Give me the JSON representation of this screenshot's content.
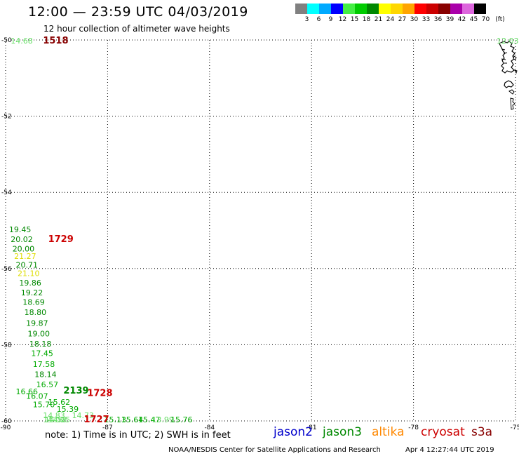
{
  "title": "12:00 — 23:59 UTC 04/03/2019",
  "subtitle": "12 hour collection of altimeter wave heights",
  "legend": {
    "unit": "(ft)",
    "bins": [
      {
        "label": "3",
        "color": "#808080"
      },
      {
        "label": "6",
        "color": "#00ffff"
      },
      {
        "label": "9",
        "color": "#00aaff"
      },
      {
        "label": "12",
        "color": "#0000ff"
      },
      {
        "label": "15",
        "color": "#44ee44"
      },
      {
        "label": "18",
        "color": "#00cc00"
      },
      {
        "label": "21",
        "color": "#008800"
      },
      {
        "label": "24",
        "color": "#ffff00"
      },
      {
        "label": "27",
        "color": "#ffd700"
      },
      {
        "label": "30",
        "color": "#ffa500"
      },
      {
        "label": "33",
        "color": "#ff0000"
      },
      {
        "label": "36",
        "color": "#cc0000"
      },
      {
        "label": "39",
        "color": "#880000"
      },
      {
        "label": "42",
        "color": "#aa00aa"
      },
      {
        "label": "45",
        "color": "#dd66dd"
      },
      {
        "label": "70",
        "color": "#000000"
      }
    ]
  },
  "map": {
    "lon_range": [
      -90,
      -75
    ],
    "lat_range": [
      -60,
      -50
    ],
    "lon_ticks": [
      "-90",
      "-87",
      "-84",
      "-81",
      "-78",
      "-75"
    ],
    "lat_ticks": [
      "-50",
      "-52",
      "-54",
      "-56",
      "-58",
      "-60"
    ],
    "observations": [
      {
        "text": "14.68",
        "lon": -89.85,
        "lat": -50.0,
        "color": "#66dd66"
      },
      {
        "text": "1518",
        "lon": -88.9,
        "lat": -50.0,
        "color": "#880000",
        "bold": true
      },
      {
        "text": "12.03",
        "lon": -75.05,
        "lat": -50.0,
        "color": "#66dd66"
      },
      {
        "text": "19.45",
        "lon": -89.9,
        "lat": -55.05,
        "color": "#008800"
      },
      {
        "text": "20.02",
        "lon": -89.85,
        "lat": -55.3,
        "color": "#008800"
      },
      {
        "text": "1729",
        "lon": -88.75,
        "lat": -55.3,
        "color": "#cc0000",
        "bold": true
      },
      {
        "text": "20.00",
        "lon": -89.8,
        "lat": -55.55,
        "color": "#008800"
      },
      {
        "text": "21.27",
        "lon": -89.75,
        "lat": -55.75,
        "color": "#dddd00"
      },
      {
        "text": "20.71",
        "lon": -89.7,
        "lat": -55.98,
        "color": "#008800"
      },
      {
        "text": "21.10",
        "lon": -89.65,
        "lat": -56.2,
        "color": "#dddd00"
      },
      {
        "text": "19.86",
        "lon": -89.6,
        "lat": -56.45,
        "color": "#008800"
      },
      {
        "text": "19.22",
        "lon": -89.55,
        "lat": -56.7,
        "color": "#008800"
      },
      {
        "text": "18.69",
        "lon": -89.5,
        "lat": -56.95,
        "color": "#008800"
      },
      {
        "text": "18.80",
        "lon": -89.45,
        "lat": -57.22,
        "color": "#008800"
      },
      {
        "text": "19.87",
        "lon": -89.4,
        "lat": -57.5,
        "color": "#008800"
      },
      {
        "text": "19.00",
        "lon": -89.35,
        "lat": -57.78,
        "color": "#008800"
      },
      {
        "text": "18.18",
        "lon": -89.3,
        "lat": -58.05,
        "color": "#008800"
      },
      {
        "text": "17.45",
        "lon": -89.25,
        "lat": -58.3,
        "color": "#00aa00"
      },
      {
        "text": "17.58",
        "lon": -89.2,
        "lat": -58.58,
        "color": "#00aa00"
      },
      {
        "text": "18.14",
        "lon": -89.15,
        "lat": -58.85,
        "color": "#008800"
      },
      {
        "text": "16.57",
        "lon": -89.1,
        "lat": -59.12,
        "color": "#00aa00"
      },
      {
        "text": "16.66",
        "lon": -89.7,
        "lat": -59.3,
        "color": "#00aa00"
      },
      {
        "text": "2139",
        "lon": -88.3,
        "lat": -59.28,
        "color": "#008800",
        "bold": true
      },
      {
        "text": "1728",
        "lon": -87.6,
        "lat": -59.35,
        "color": "#cc0000",
        "bold": true
      },
      {
        "text": "16.07",
        "lon": -89.4,
        "lat": -59.42,
        "color": "#00aa00"
      },
      {
        "text": "15.62",
        "lon": -88.75,
        "lat": -59.58,
        "color": "#00aa00"
      },
      {
        "text": "15.70",
        "lon": -89.2,
        "lat": -59.64,
        "color": "#00aa00"
      },
      {
        "text": "15.39",
        "lon": -88.5,
        "lat": -59.76,
        "color": "#00aa00"
      },
      {
        "text": "14.83",
        "lon": -88.9,
        "lat": -59.93,
        "color": "#66dd66"
      },
      {
        "text": "14.73",
        "lon": -88.05,
        "lat": -59.93,
        "color": "#66dd66"
      },
      {
        "text": "15.13",
        "lon": -87.1,
        "lat": -60.1,
        "color": "#00aa00"
      },
      {
        "text": "14.09",
        "lon": -88.9,
        "lat": -60.3,
        "color": "#66dd66"
      },
      {
        "text": "15.64",
        "lon": -86.6,
        "lat": -60.3,
        "color": "#00aa00"
      },
      {
        "text": "15.47",
        "lon": -86.1,
        "lat": -60.52,
        "color": "#00aa00"
      },
      {
        "text": "14.58",
        "lon": -88.85,
        "lat": -60.62,
        "color": "#66dd66"
      },
      {
        "text": "13.99",
        "lon": -85.7,
        "lat": -60.72,
        "color": "#66dd66"
      },
      {
        "text": "14.25",
        "lon": -88.75,
        "lat": -60.95,
        "color": "#66dd66"
      },
      {
        "text": "1727",
        "lon": -87.7,
        "lat": -60.95,
        "color": "#cc0000",
        "bold": true
      },
      {
        "text": "15.76",
        "lon": -85.15,
        "lat": -60.95,
        "color": "#00aa00"
      }
    ]
  },
  "footer": {
    "note": "note:  1) Time is in UTC;  2) SWH is in feet",
    "missions": [
      {
        "name": "jason2",
        "color": "#0000cc"
      },
      {
        "name": "jason3",
        "color": "#008800"
      },
      {
        "name": "altika",
        "color": "#ff8800"
      },
      {
        "name": "cryosat",
        "color": "#cc0000"
      },
      {
        "name": "s3a",
        "color": "#880000"
      }
    ],
    "credit_source": "NOAA/NESDIS Center for Satellite Applications and Research",
    "credit_time": "Apr  4 12:27:44 UTC 2019"
  }
}
